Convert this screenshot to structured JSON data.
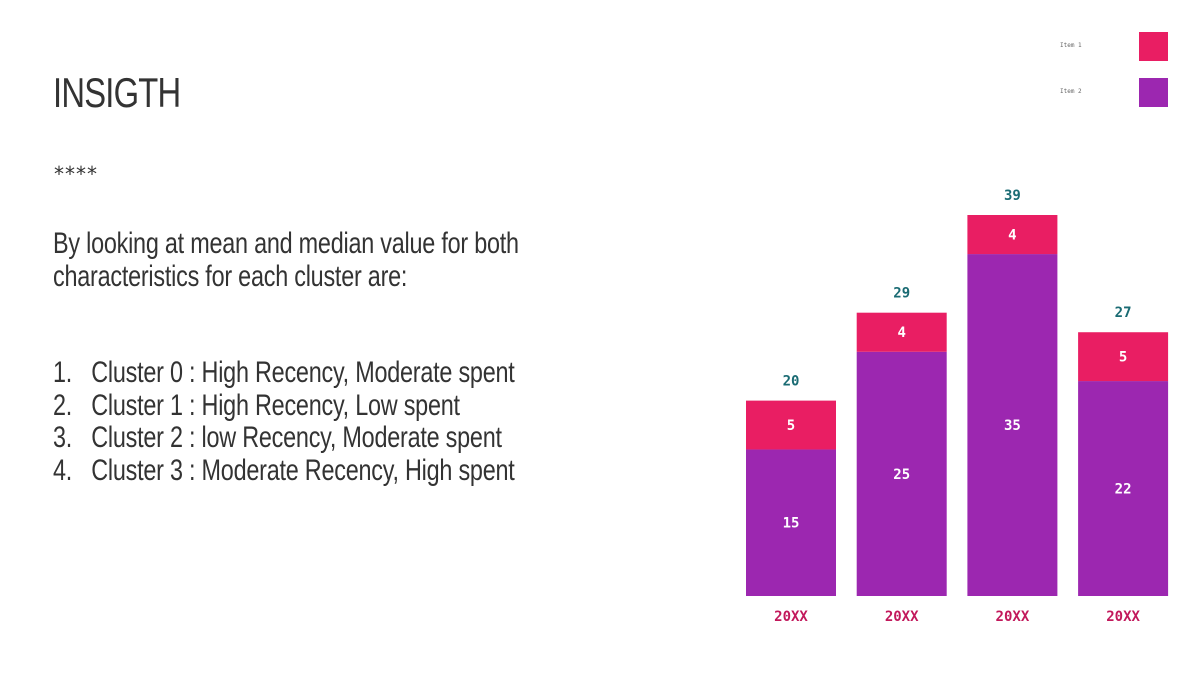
{
  "slide": {
    "title": "INSIGTH",
    "decoration": "****",
    "intro_lines": [
      "By looking at mean and median value for both",
      "characteristics for each cluster are:"
    ],
    "list": [
      {
        "number": "1.",
        "text": "Cluster 0 : High Recency, Moderate spent"
      },
      {
        "number": "2.",
        "text": "Cluster 1 : High Recency, Low spent"
      },
      {
        "number": "3.",
        "text": "Cluster 2 : low Recency, Moderate spent"
      },
      {
        "number": "4.",
        "text": "Cluster 3 : Moderate Recency, High spent"
      }
    ]
  },
  "legend": {
    "items": [
      {
        "label": "Item 1",
        "color": "#e91e63"
      },
      {
        "label": "Item 2",
        "color": "#9c27b0"
      }
    ]
  },
  "colors": {
    "item1": "#e91e63",
    "item2": "#9c27b0",
    "total_label": "#1a6b73",
    "category_label": "#c2185b",
    "segment_label": "#ffffff"
  },
  "chart_data": {
    "type": "bar",
    "stacked": true,
    "title": "",
    "xlabel": "",
    "ylabel": "",
    "categories": [
      "20XX",
      "20XX",
      "20XX",
      "20XX"
    ],
    "series": [
      {
        "name": "Item 2",
        "values": [
          15,
          25,
          35,
          22
        ],
        "color": "#9c27b0"
      },
      {
        "name": "Item 1",
        "values": [
          5,
          4,
          4,
          5
        ],
        "color": "#e91e63"
      }
    ],
    "totals": [
      20,
      29,
      39,
      27
    ],
    "ylim": [
      0,
      39
    ],
    "grid": false,
    "axes_visible": false,
    "legend_position": "top-right"
  }
}
